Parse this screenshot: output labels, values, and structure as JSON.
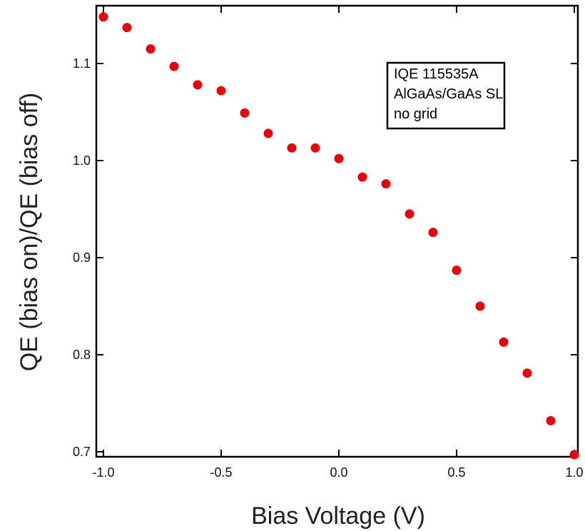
{
  "chart_data": {
    "type": "scatter",
    "xlabel": "Bias Voltage (V)",
    "ylabel": "QE (bias on)/QE (bias off)",
    "xlim": [
      -1.0,
      1.0
    ],
    "ylim": [
      0.7,
      1.15
    ],
    "x_ticks": [
      -1.0,
      -0.5,
      0.0,
      0.5,
      1.0
    ],
    "x_tick_labels": [
      "-1.0",
      "-0.5",
      "0.0",
      "0.5",
      "1.0"
    ],
    "y_ticks": [
      0.7,
      0.8,
      0.9,
      1.0,
      1.1
    ],
    "y_tick_labels": [
      "0.7",
      "0.8",
      "0.9",
      "1.0",
      "1.1"
    ],
    "grid": false,
    "legend_placement": "top-right",
    "annotation_lines": [
      "IQE 115535A",
      "AlGaAs/GaAs SL",
      "no grid"
    ],
    "marker_color": "#e8000b",
    "x": [
      -1.0,
      -0.9,
      -0.8,
      -0.7,
      -0.6,
      -0.5,
      -0.4,
      -0.3,
      -0.2,
      -0.1,
      0.0,
      0.1,
      0.2,
      0.3,
      0.4,
      0.5,
      0.6,
      0.7,
      0.8,
      0.9,
      1.0
    ],
    "y": [
      1.148,
      1.137,
      1.115,
      1.097,
      1.078,
      1.072,
      1.049,
      1.028,
      1.013,
      1.013,
      1.002,
      0.983,
      0.976,
      0.945,
      0.926,
      0.887,
      0.85,
      0.813,
      0.781,
      0.732,
      0.697
    ]
  }
}
